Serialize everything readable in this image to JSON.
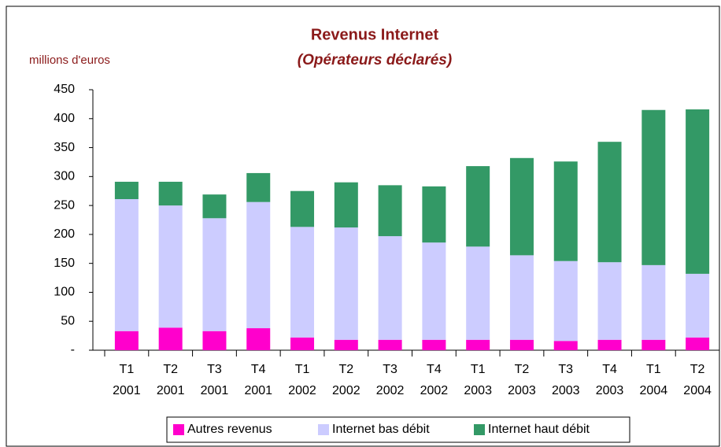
{
  "chart_data": {
    "type": "stacked_bar",
    "title": "Revenus Internet",
    "subtitle": "(Opérateurs déclarés)",
    "y_label": "millions d'euros",
    "categories": [
      [
        "T1",
        "2001"
      ],
      [
        "T2",
        "2001"
      ],
      [
        "T3",
        "2001"
      ],
      [
        "T4",
        "2001"
      ],
      [
        "T1",
        "2002"
      ],
      [
        "T2",
        "2002"
      ],
      [
        "T3",
        "2002"
      ],
      [
        "T4",
        "2002"
      ],
      [
        "T1",
        "2003"
      ],
      [
        "T2",
        "2003"
      ],
      [
        "T3",
        "2003"
      ],
      [
        "T4",
        "2003"
      ],
      [
        "T1",
        "2004"
      ],
      [
        "T2",
        "2004"
      ]
    ],
    "series": [
      {
        "name": "Autres revenus",
        "color": "#ff00cc",
        "values": [
          33,
          39,
          33,
          38,
          22,
          18,
          18,
          18,
          18,
          18,
          16,
          18,
          18,
          22
        ]
      },
      {
        "name": "Internet bas débit",
        "color": "#ccccff",
        "values": [
          228,
          211,
          195,
          218,
          191,
          194,
          179,
          168,
          161,
          146,
          138,
          134,
          129,
          110
        ]
      },
      {
        "name": "Internet haut débit",
        "color": "#339966",
        "values": [
          30,
          41,
          41,
          50,
          62,
          78,
          88,
          97,
          139,
          168,
          172,
          208,
          268,
          284
        ]
      }
    ],
    "ylim": [
      0,
      450
    ],
    "yticks": [
      {
        "value": 0,
        "label": "-"
      },
      50,
      100,
      150,
      200,
      250,
      300,
      350,
      400,
      450
    ],
    "legend": "bottom"
  }
}
